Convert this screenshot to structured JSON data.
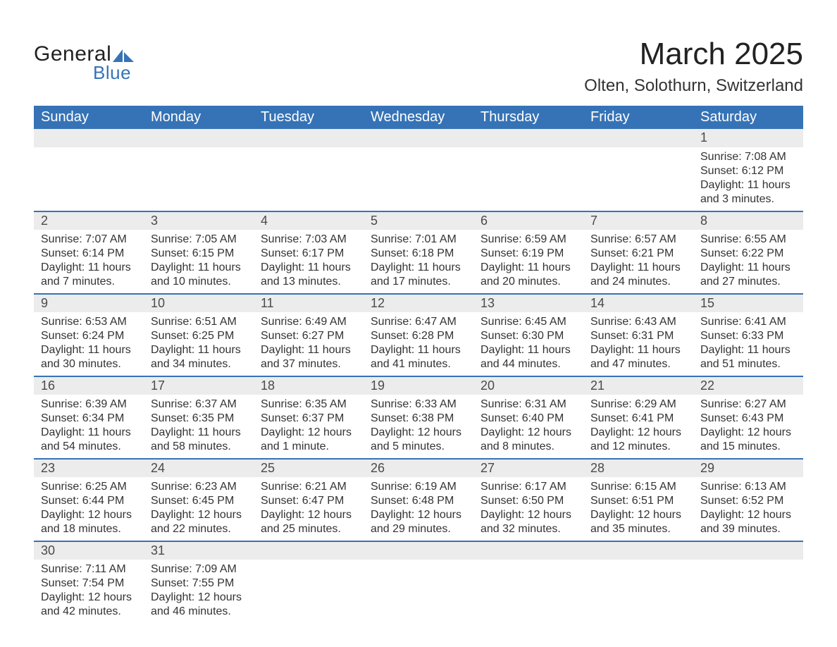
{
  "logo": {
    "word1": "General",
    "word2": "Blue",
    "text_color": "#222222",
    "accent_color": "#3673b6"
  },
  "header": {
    "title": "March 2025",
    "location": "Olten, Solothurn, Switzerland"
  },
  "colors": {
    "header_bg": "#3673b6",
    "header_text": "#ffffff",
    "daynum_bg": "#ececec",
    "daynum_text": "#4a4a4a",
    "body_text": "#333333",
    "row_border": "#3673b6",
    "page_bg": "#ffffff"
  },
  "typography": {
    "title_fontsize": 44,
    "location_fontsize": 24,
    "dayheader_fontsize": 20,
    "daynum_fontsize": 18,
    "body_fontsize": 16
  },
  "calendar": {
    "day_headers": [
      "Sunday",
      "Monday",
      "Tuesday",
      "Wednesday",
      "Thursday",
      "Friday",
      "Saturday"
    ],
    "weeks": [
      [
        null,
        null,
        null,
        null,
        null,
        null,
        {
          "n": "1",
          "sunrise": "Sunrise: 7:08 AM",
          "sunset": "Sunset: 6:12 PM",
          "day1": "Daylight: 11 hours",
          "day2": "and 3 minutes."
        }
      ],
      [
        {
          "n": "2",
          "sunrise": "Sunrise: 7:07 AM",
          "sunset": "Sunset: 6:14 PM",
          "day1": "Daylight: 11 hours",
          "day2": "and 7 minutes."
        },
        {
          "n": "3",
          "sunrise": "Sunrise: 7:05 AM",
          "sunset": "Sunset: 6:15 PM",
          "day1": "Daylight: 11 hours",
          "day2": "and 10 minutes."
        },
        {
          "n": "4",
          "sunrise": "Sunrise: 7:03 AM",
          "sunset": "Sunset: 6:17 PM",
          "day1": "Daylight: 11 hours",
          "day2": "and 13 minutes."
        },
        {
          "n": "5",
          "sunrise": "Sunrise: 7:01 AM",
          "sunset": "Sunset: 6:18 PM",
          "day1": "Daylight: 11 hours",
          "day2": "and 17 minutes."
        },
        {
          "n": "6",
          "sunrise": "Sunrise: 6:59 AM",
          "sunset": "Sunset: 6:19 PM",
          "day1": "Daylight: 11 hours",
          "day2": "and 20 minutes."
        },
        {
          "n": "7",
          "sunrise": "Sunrise: 6:57 AM",
          "sunset": "Sunset: 6:21 PM",
          "day1": "Daylight: 11 hours",
          "day2": "and 24 minutes."
        },
        {
          "n": "8",
          "sunrise": "Sunrise: 6:55 AM",
          "sunset": "Sunset: 6:22 PM",
          "day1": "Daylight: 11 hours",
          "day2": "and 27 minutes."
        }
      ],
      [
        {
          "n": "9",
          "sunrise": "Sunrise: 6:53 AM",
          "sunset": "Sunset: 6:24 PM",
          "day1": "Daylight: 11 hours",
          "day2": "and 30 minutes."
        },
        {
          "n": "10",
          "sunrise": "Sunrise: 6:51 AM",
          "sunset": "Sunset: 6:25 PM",
          "day1": "Daylight: 11 hours",
          "day2": "and 34 minutes."
        },
        {
          "n": "11",
          "sunrise": "Sunrise: 6:49 AM",
          "sunset": "Sunset: 6:27 PM",
          "day1": "Daylight: 11 hours",
          "day2": "and 37 minutes."
        },
        {
          "n": "12",
          "sunrise": "Sunrise: 6:47 AM",
          "sunset": "Sunset: 6:28 PM",
          "day1": "Daylight: 11 hours",
          "day2": "and 41 minutes."
        },
        {
          "n": "13",
          "sunrise": "Sunrise: 6:45 AM",
          "sunset": "Sunset: 6:30 PM",
          "day1": "Daylight: 11 hours",
          "day2": "and 44 minutes."
        },
        {
          "n": "14",
          "sunrise": "Sunrise: 6:43 AM",
          "sunset": "Sunset: 6:31 PM",
          "day1": "Daylight: 11 hours",
          "day2": "and 47 minutes."
        },
        {
          "n": "15",
          "sunrise": "Sunrise: 6:41 AM",
          "sunset": "Sunset: 6:33 PM",
          "day1": "Daylight: 11 hours",
          "day2": "and 51 minutes."
        }
      ],
      [
        {
          "n": "16",
          "sunrise": "Sunrise: 6:39 AM",
          "sunset": "Sunset: 6:34 PM",
          "day1": "Daylight: 11 hours",
          "day2": "and 54 minutes."
        },
        {
          "n": "17",
          "sunrise": "Sunrise: 6:37 AM",
          "sunset": "Sunset: 6:35 PM",
          "day1": "Daylight: 11 hours",
          "day2": "and 58 minutes."
        },
        {
          "n": "18",
          "sunrise": "Sunrise: 6:35 AM",
          "sunset": "Sunset: 6:37 PM",
          "day1": "Daylight: 12 hours",
          "day2": "and 1 minute."
        },
        {
          "n": "19",
          "sunrise": "Sunrise: 6:33 AM",
          "sunset": "Sunset: 6:38 PM",
          "day1": "Daylight: 12 hours",
          "day2": "and 5 minutes."
        },
        {
          "n": "20",
          "sunrise": "Sunrise: 6:31 AM",
          "sunset": "Sunset: 6:40 PM",
          "day1": "Daylight: 12 hours",
          "day2": "and 8 minutes."
        },
        {
          "n": "21",
          "sunrise": "Sunrise: 6:29 AM",
          "sunset": "Sunset: 6:41 PM",
          "day1": "Daylight: 12 hours",
          "day2": "and 12 minutes."
        },
        {
          "n": "22",
          "sunrise": "Sunrise: 6:27 AM",
          "sunset": "Sunset: 6:43 PM",
          "day1": "Daylight: 12 hours",
          "day2": "and 15 minutes."
        }
      ],
      [
        {
          "n": "23",
          "sunrise": "Sunrise: 6:25 AM",
          "sunset": "Sunset: 6:44 PM",
          "day1": "Daylight: 12 hours",
          "day2": "and 18 minutes."
        },
        {
          "n": "24",
          "sunrise": "Sunrise: 6:23 AM",
          "sunset": "Sunset: 6:45 PM",
          "day1": "Daylight: 12 hours",
          "day2": "and 22 minutes."
        },
        {
          "n": "25",
          "sunrise": "Sunrise: 6:21 AM",
          "sunset": "Sunset: 6:47 PM",
          "day1": "Daylight: 12 hours",
          "day2": "and 25 minutes."
        },
        {
          "n": "26",
          "sunrise": "Sunrise: 6:19 AM",
          "sunset": "Sunset: 6:48 PM",
          "day1": "Daylight: 12 hours",
          "day2": "and 29 minutes."
        },
        {
          "n": "27",
          "sunrise": "Sunrise: 6:17 AM",
          "sunset": "Sunset: 6:50 PM",
          "day1": "Daylight: 12 hours",
          "day2": "and 32 minutes."
        },
        {
          "n": "28",
          "sunrise": "Sunrise: 6:15 AM",
          "sunset": "Sunset: 6:51 PM",
          "day1": "Daylight: 12 hours",
          "day2": "and 35 minutes."
        },
        {
          "n": "29",
          "sunrise": "Sunrise: 6:13 AM",
          "sunset": "Sunset: 6:52 PM",
          "day1": "Daylight: 12 hours",
          "day2": "and 39 minutes."
        }
      ],
      [
        {
          "n": "30",
          "sunrise": "Sunrise: 7:11 AM",
          "sunset": "Sunset: 7:54 PM",
          "day1": "Daylight: 12 hours",
          "day2": "and 42 minutes."
        },
        {
          "n": "31",
          "sunrise": "Sunrise: 7:09 AM",
          "sunset": "Sunset: 7:55 PM",
          "day1": "Daylight: 12 hours",
          "day2": "and 46 minutes."
        },
        null,
        null,
        null,
        null,
        null
      ]
    ]
  }
}
